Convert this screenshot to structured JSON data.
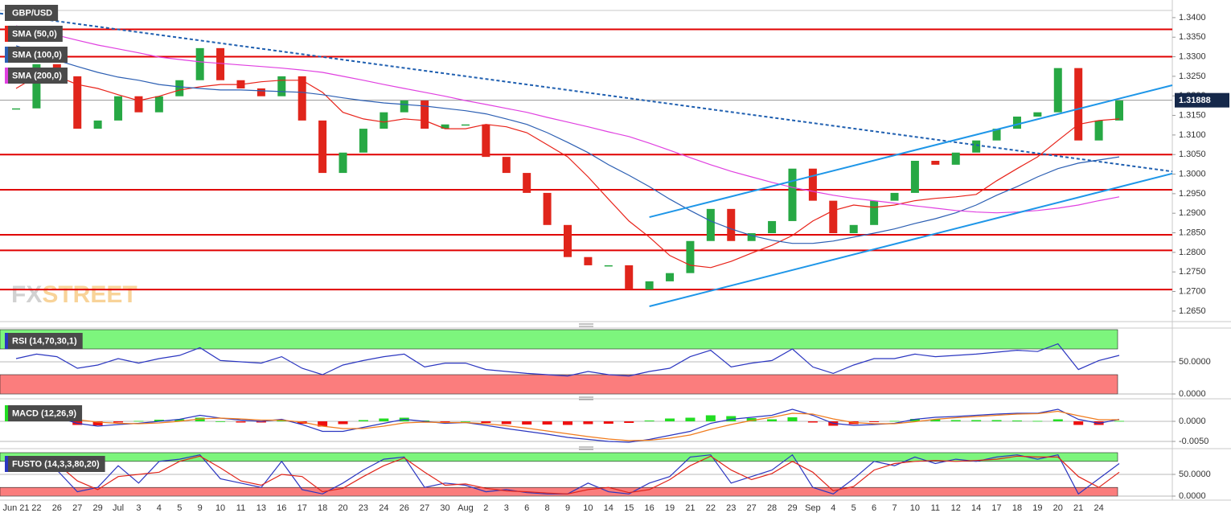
{
  "chart_data": [
    {
      "type": "line",
      "categories": [
        "Jun 21",
        "22",
        "26",
        "27",
        "29",
        "Jul",
        "3",
        "4",
        "5",
        "9",
        "10",
        "11",
        "13",
        "16",
        "17",
        "18",
        "20",
        "23",
        "24",
        "26",
        "27",
        "30",
        "Aug",
        "2",
        "3",
        "6",
        "8",
        "9",
        "10",
        "14",
        "15",
        "16",
        "19",
        "21",
        "22",
        "23",
        "27",
        "28",
        "29",
        "Sep",
        "4",
        "5",
        "6",
        "7",
        "10",
        "11",
        "12",
        "14",
        "17",
        "18",
        "19",
        "20",
        "21",
        "24",
        null
      ],
      "series": [
        {
          "name": "GBP/USD",
          "style": "candle",
          "color": "#27a844",
          "down_color": "#e0251b",
          "values": [
            1.3168,
            1.3281,
            1.325,
            1.3116,
            1.3137,
            1.3199,
            1.3158,
            1.3199,
            1.324,
            1.3322,
            1.324,
            1.3219,
            1.3199,
            1.325,
            1.3137,
            1.3003,
            1.3055,
            1.3116,
            1.3158,
            1.3188,
            1.3116,
            1.3127,
            1.3127,
            1.3044,
            1.3003,
            1.2952,
            1.287,
            1.2788,
            1.2767,
            1.2767,
            1.2705,
            1.2726,
            1.2747,
            1.2829,
            1.2911,
            1.2829,
            1.2849,
            1.288,
            1.3014,
            1.2932,
            1.2849,
            1.287,
            1.2932,
            1.2952,
            1.3034,
            1.3024,
            1.3055,
            1.3086,
            1.3116,
            1.3147,
            1.3158,
            1.3271,
            1.3086,
            1.3137,
            1.3188
          ]
        },
        {
          "name": "SMA (50,0)",
          "color": "#e8231a",
          "values": [
            1.3219,
            1.325,
            1.325,
            1.3229,
            1.3219,
            1.3203,
            1.3188,
            1.3199,
            1.3215,
            1.3223,
            1.3229,
            1.3229,
            1.3236,
            1.324,
            1.324,
            1.3209,
            1.3158,
            1.3141,
            1.3133,
            1.3141,
            1.3137,
            1.3116,
            1.3116,
            1.3127,
            1.3121,
            1.3106,
            1.3075,
            1.3044,
            1.2993,
            1.2936,
            1.288,
            1.2839,
            1.2792,
            1.2767,
            1.2761,
            1.2777,
            1.2798,
            1.2818,
            1.2843,
            1.288,
            1.2907,
            1.2921,
            1.2915,
            1.2921,
            1.2932,
            1.2938,
            1.2942,
            1.2948,
            1.2983,
            1.3014,
            1.3044,
            1.3086,
            1.3127,
            1.3137,
            1.3141
          ]
        },
        {
          "name": "SMA (100,0)",
          "color": "#2c5fb3",
          "values": [
            1.3328,
            1.3312,
            1.3291,
            1.3275,
            1.326,
            1.3248,
            1.324,
            1.3229,
            1.3223,
            1.3219,
            1.3215,
            1.3215,
            1.3213,
            1.3211,
            1.3209,
            1.3203,
            1.3195,
            1.3188,
            1.3182,
            1.3178,
            1.3174,
            1.3168,
            1.3162,
            1.3154,
            1.3141,
            1.3127,
            1.3106,
            1.3081,
            1.3055,
            1.3024,
            1.2997,
            1.2968,
            1.2936,
            1.2907,
            1.288,
            1.286,
            1.2843,
            1.2831,
            1.2823,
            1.2823,
            1.2829,
            1.2839,
            1.2849,
            1.286,
            1.2874,
            1.2886,
            1.2901,
            1.2921,
            1.2946,
            1.2968,
            1.2993,
            1.3014,
            1.3028,
            1.3036,
            1.3044
          ]
        },
        {
          "name": "SMA (200,0)",
          "color": "#e040e0",
          "values": [
            1.3379,
            1.3367,
            1.3355,
            1.3342,
            1.333,
            1.332,
            1.331,
            1.3299,
            1.3293,
            1.3287,
            1.3283,
            1.3279,
            1.3275,
            1.3271,
            1.3266,
            1.326,
            1.325,
            1.324,
            1.3229,
            1.3219,
            1.3209,
            1.3199,
            1.3188,
            1.3178,
            1.3168,
            1.3158,
            1.3145,
            1.3133,
            1.3121,
            1.3108,
            1.3096,
            1.3079,
            1.3061,
            1.3042,
            1.3024,
            1.3007,
            1.2993,
            1.2979,
            1.2966,
            1.2956,
            1.2946,
            1.2938,
            1.2932,
            1.2926,
            1.2919,
            1.2913,
            1.2907,
            1.2903,
            1.2901,
            1.2903,
            1.2907,
            1.2913,
            1.2921,
            1.2932,
            1.2942
          ]
        }
      ],
      "ylim": [
        1.2623,
        1.3445
      ],
      "yticks": [
        {
          "value": 1.265,
          "label": "1.2650"
        },
        {
          "value": 1.27,
          "label": "1.2700"
        },
        {
          "value": 1.275,
          "label": "1.2750"
        },
        {
          "value": 1.28,
          "label": "1.2800"
        },
        {
          "value": 1.285,
          "label": "1.2850"
        },
        {
          "value": 1.29,
          "label": "1.2900"
        },
        {
          "value": 1.295,
          "label": "1.2950"
        },
        {
          "value": 1.3,
          "label": "1.3000"
        },
        {
          "value": 1.305,
          "label": "1.3050"
        },
        {
          "value": 1.31,
          "label": "1.3100"
        },
        {
          "value": 1.315,
          "label": "1.3150"
        },
        {
          "value": 1.32,
          "label": "1.3200"
        },
        {
          "value": 1.325,
          "label": "1.3250"
        },
        {
          "value": 1.33,
          "label": "1.3300"
        },
        {
          "value": 1.335,
          "label": "1.3350"
        },
        {
          "value": 1.34,
          "label": "1.3400"
        }
      ],
      "hlines": [
        1.337,
        1.33,
        1.305,
        1.296,
        1.2845,
        1.2805,
        1.2705
      ],
      "hline_color": "#e00000",
      "trendlines": [
        {
          "from": [
            0,
            1.3405
          ],
          "to": [
            54,
            1.3025
          ],
          "color": "#1f5fb0",
          "dashed": true,
          "extend": "both"
        },
        {
          "from": [
            31,
            1.289
          ],
          "to": [
            54,
            1.3193
          ],
          "color": "#1e96e8",
          "dashed": false,
          "extend": "right"
        },
        {
          "from": [
            31,
            1.2662
          ],
          "to": [
            54,
            1.2967
          ],
          "color": "#1e96e8",
          "dashed": false,
          "extend": "right"
        }
      ],
      "last_price": {
        "value": 1.31888,
        "label": "1.31888"
      },
      "watermark": [
        "FX",
        "STREET"
      ],
      "legend": "top-left"
    },
    {
      "type": "line",
      "title": "RSI (14,70,30,1)",
      "series": [
        {
          "color": "#2b36c0",
          "values": [
            55,
            62,
            58,
            40,
            45,
            55,
            48,
            55,
            60,
            72,
            52,
            50,
            48,
            58,
            40,
            30,
            45,
            52,
            58,
            62,
            42,
            48,
            48,
            38,
            35,
            32,
            30,
            28,
            35,
            30,
            28,
            35,
            40,
            58,
            68,
            42,
            48,
            52,
            70,
            42,
            32,
            45,
            55,
            55,
            62,
            58,
            60,
            62,
            65,
            68,
            66,
            78,
            38,
            52,
            60
          ]
        }
      ],
      "ylim": [
        0,
        100
      ],
      "yticks": [
        {
          "value": 50,
          "label": "50.0000"
        },
        {
          "value": 0,
          "label": "0.0000"
        }
      ],
      "bands": [
        {
          "from": 70,
          "to": 100,
          "color": "#7df57d"
        },
        {
          "from": 0,
          "to": 30,
          "color": "#fb7d7d"
        }
      ]
    },
    {
      "type": "line",
      "title": "MACD (12,26,9)",
      "series": [
        {
          "style": "histogram",
          "color": "#22dd22",
          "negative_color": "#ee1111",
          "values": [
            0.0003,
            0.0006,
            0.0002,
            -0.0009,
            -0.001,
            -0.0003,
            0.0001,
            0.0004,
            0.0005,
            0.0009,
            0,
            -0.0003,
            -0.0003,
            0.0002,
            -0.0006,
            -0.0013,
            -0.0007,
            0.0003,
            0.0007,
            0.0009,
            0.0002,
            -0.0002,
            0,
            -0.0004,
            -0.0007,
            -0.0008,
            -0.0008,
            -0.0009,
            -0.0007,
            -0.0006,
            -0.0004,
            0.0002,
            0.0007,
            0.0009,
            0.0015,
            0.0013,
            0.0008,
            0.0005,
            0.001,
            -0.0003,
            -0.0011,
            -0.0007,
            -0.0002,
            0.0001,
            0.0006,
            0.0005,
            0.0003,
            0.0003,
            0.0003,
            0.0002,
            0.0001,
            0.0005,
            -0.0009,
            -0.0009,
            0.0001
          ]
        },
        {
          "color": "#2b36c0",
          "values": [
            0.0005,
            0.0012,
            0.001,
            -0.0005,
            -0.0012,
            -0.0008,
            -0.0005,
            0,
            0.0005,
            0.0015,
            0.0008,
            0.0003,
            0,
            0.0005,
            -0.0008,
            -0.0025,
            -0.0025,
            -0.0015,
            -0.0005,
            0.0005,
            0,
            -0.0005,
            -0.0003,
            -0.001,
            -0.0018,
            -0.0025,
            -0.0032,
            -0.004,
            -0.0045,
            -0.005,
            -0.0052,
            -0.0045,
            -0.0035,
            -0.0025,
            -0.0005,
            0.0005,
            0.001,
            0.0015,
            0.003,
            0.0015,
            -0.0005,
            -0.001,
            -0.0008,
            -0.0005,
            0.0005,
            0.001,
            0.0012,
            0.0015,
            0.0018,
            0.002,
            0.002,
            0.003,
            0.0005,
            -0.0005,
            0.0005
          ]
        },
        {
          "color": "#f07b1d",
          "values": [
            0.0002,
            0.0006,
            0.0008,
            0.0004,
            -0.0002,
            -0.0005,
            -0.0006,
            -0.0004,
            0,
            0.0006,
            0.0008,
            0.0006,
            0.0003,
            0.0003,
            -0.0002,
            -0.0012,
            -0.0018,
            -0.0018,
            -0.0012,
            -0.0004,
            -0.0002,
            -0.0003,
            -0.0003,
            -0.0006,
            -0.0011,
            -0.0017,
            -0.0024,
            -0.0031,
            -0.0038,
            -0.0044,
            -0.0048,
            -0.0047,
            -0.0042,
            -0.0034,
            -0.002,
            -0.0008,
            0.0002,
            0.001,
            0.002,
            0.0018,
            0.0006,
            -0.0003,
            -0.0006,
            -0.0006,
            -0.0001,
            0.0005,
            0.0009,
            0.0012,
            0.0015,
            0.0018,
            0.0019,
            0.0025,
            0.0014,
            0.0004,
            0.0004
          ]
        }
      ],
      "ylim": [
        -0.0062,
        0.0048
      ],
      "yticks": [
        {
          "value": 0,
          "label": "0.0000"
        },
        {
          "value": -0.005,
          "label": "-0.0050"
        }
      ]
    },
    {
      "type": "line",
      "title": "FUSTO (14,3,3,80,20)",
      "series": [
        {
          "color": "#2b36c0",
          "values": [
            70,
            90,
            60,
            10,
            20,
            70,
            30,
            80,
            85,
            95,
            40,
            30,
            20,
            80,
            15,
            5,
            30,
            60,
            85,
            90,
            20,
            30,
            25,
            10,
            15,
            8,
            5,
            5,
            30,
            10,
            5,
            30,
            45,
            90,
            95,
            30,
            45,
            60,
            95,
            20,
            5,
            40,
            80,
            70,
            90,
            75,
            85,
            80,
            90,
            95,
            85,
            95,
            5,
            40,
            75
          ]
        },
        {
          "color": "#e0251b",
          "values": [
            60,
            80,
            75,
            35,
            15,
            45,
            50,
            55,
            80,
            92,
            65,
            35,
            25,
            50,
            45,
            10,
            18,
            45,
            70,
            88,
            55,
            25,
            28,
            18,
            12,
            10,
            7,
            5,
            15,
            20,
            8,
            15,
            38,
            70,
            92,
            60,
            38,
            52,
            80,
            55,
            12,
            22,
            60,
            75,
            80,
            82,
            80,
            82,
            85,
            92,
            90,
            90,
            45,
            20,
            55
          ]
        }
      ],
      "ylim": [
        0,
        100
      ],
      "yticks": [
        {
          "value": 50,
          "label": "50.0000"
        },
        {
          "value": 0,
          "label": "0.0000"
        }
      ],
      "bands": [
        {
          "from": 80,
          "to": 100,
          "color": "#7df57d"
        },
        {
          "from": 0,
          "to": 20,
          "color": "#fb7d7d"
        }
      ]
    }
  ]
}
